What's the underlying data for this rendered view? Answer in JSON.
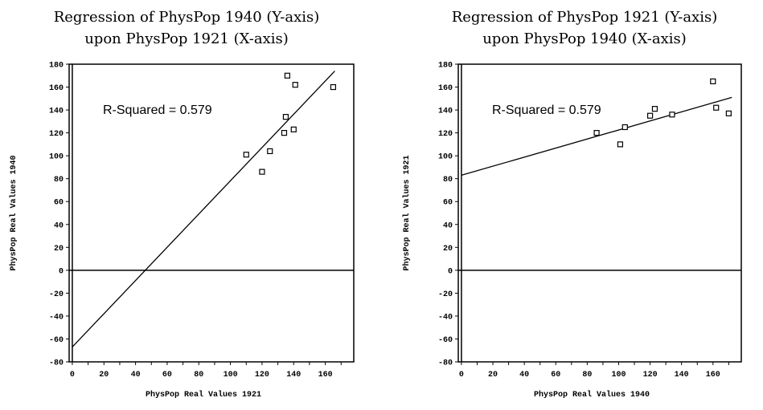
{
  "chart_data": [
    {
      "type": "scatter",
      "title_lines": [
        "Regression of PhysPop 1940 (Y-axis)",
        "upon PhysPop 1921 (X-axis)"
      ],
      "xlabel": "PhysPop Real Values 1921",
      "ylabel": "PhysPop Real Values 1940",
      "xlim": [
        -2,
        178
      ],
      "ylim": [
        -80,
        180
      ],
      "xticks": [
        0,
        20,
        40,
        60,
        80,
        100,
        120,
        140,
        160
      ],
      "yticks": [
        -80,
        -60,
        -40,
        -20,
        0,
        20,
        40,
        60,
        80,
        100,
        120,
        140,
        160,
        180
      ],
      "grid": false,
      "annotation": "R-Squared = 0.579",
      "points": [
        {
          "x": 110,
          "y": 101
        },
        {
          "x": 120,
          "y": 86
        },
        {
          "x": 125,
          "y": 104
        },
        {
          "x": 134,
          "y": 120
        },
        {
          "x": 135,
          "y": 134
        },
        {
          "x": 136,
          "y": 170
        },
        {
          "x": 140,
          "y": 123
        },
        {
          "x": 141,
          "y": 162
        },
        {
          "x": 165,
          "y": 160
        }
      ],
      "fit_line": {
        "x": [
          0,
          166
        ],
        "y": [
          -67,
          174
        ]
      }
    },
    {
      "type": "scatter",
      "title_lines": [
        "Regression of PhysPop 1921 (Y-axis)",
        "upon PhysPop 1940 (X-axis)"
      ],
      "xlabel": "PhysPop Real Values 1940",
      "ylabel": "PhysPop Real Values 1921",
      "xlim": [
        -2,
        178
      ],
      "ylim": [
        -80,
        180
      ],
      "xticks": [
        0,
        20,
        40,
        60,
        80,
        100,
        120,
        140,
        160
      ],
      "yticks": [
        -80,
        -60,
        -40,
        -20,
        0,
        20,
        40,
        60,
        80,
        100,
        120,
        140,
        160,
        180
      ],
      "grid": false,
      "annotation": "R-Squared = 0.579",
      "points": [
        {
          "x": 86,
          "y": 120
        },
        {
          "x": 101,
          "y": 110
        },
        {
          "x": 104,
          "y": 125
        },
        {
          "x": 120,
          "y": 135
        },
        {
          "x": 123,
          "y": 141
        },
        {
          "x": 134,
          "y": 136
        },
        {
          "x": 160,
          "y": 165
        },
        {
          "x": 162,
          "y": 142
        },
        {
          "x": 170,
          "y": 137
        }
      ],
      "fit_line": {
        "x": [
          0,
          172
        ],
        "y": [
          83,
          151
        ]
      }
    }
  ]
}
